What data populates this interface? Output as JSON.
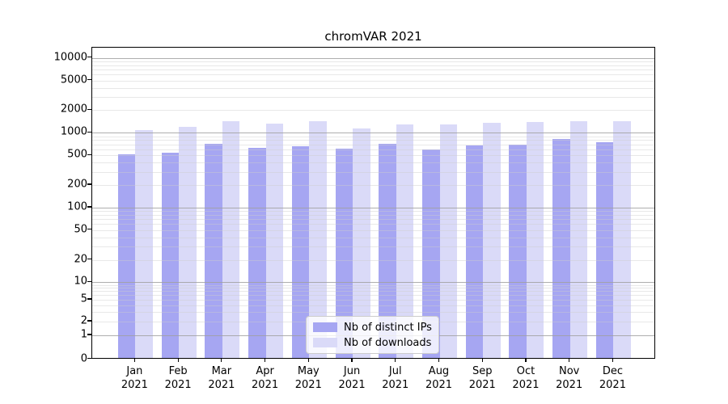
{
  "title": "chromVAR 2021",
  "chart_data": {
    "type": "bar",
    "title": "chromVAR 2021",
    "categories": [
      "Jan 2021",
      "Feb 2021",
      "Mar 2021",
      "Apr 2021",
      "May 2021",
      "Jun 2021",
      "Jul 2021",
      "Aug 2021",
      "Sep 2021",
      "Oct 2021",
      "Nov 2021",
      "Dec 2021"
    ],
    "series": [
      {
        "name": "Nb of distinct IPs",
        "color": "#a6a6f2",
        "values": [
          500,
          520,
          680,
          605,
          630,
          590,
          690,
          580,
          645,
          665,
          795,
          715
        ]
      },
      {
        "name": "Nb of downloads",
        "color": "#dadaf8",
        "values": [
          1040,
          1160,
          1390,
          1270,
          1360,
          1110,
          1260,
          1260,
          1300,
          1330,
          1390,
          1390
        ]
      }
    ],
    "yscale": "symlog",
    "ylim": [
      0,
      10000
    ],
    "y_tick_values": [
      0,
      1,
      2,
      5,
      10,
      20,
      50,
      100,
      200,
      500,
      1000,
      2000,
      5000,
      10000
    ],
    "y_tick_labels": [
      "0",
      "1",
      "2",
      "5",
      "10",
      "20",
      "50",
      "100",
      "200",
      "500",
      "1000",
      "2000",
      "5000",
      "10000"
    ],
    "xlabel": "",
    "ylabel": "",
    "grid": true,
    "grid_over_bars": true,
    "legend_position": "lower center",
    "axis_color": "#000000",
    "background_color": "#ffffff"
  }
}
